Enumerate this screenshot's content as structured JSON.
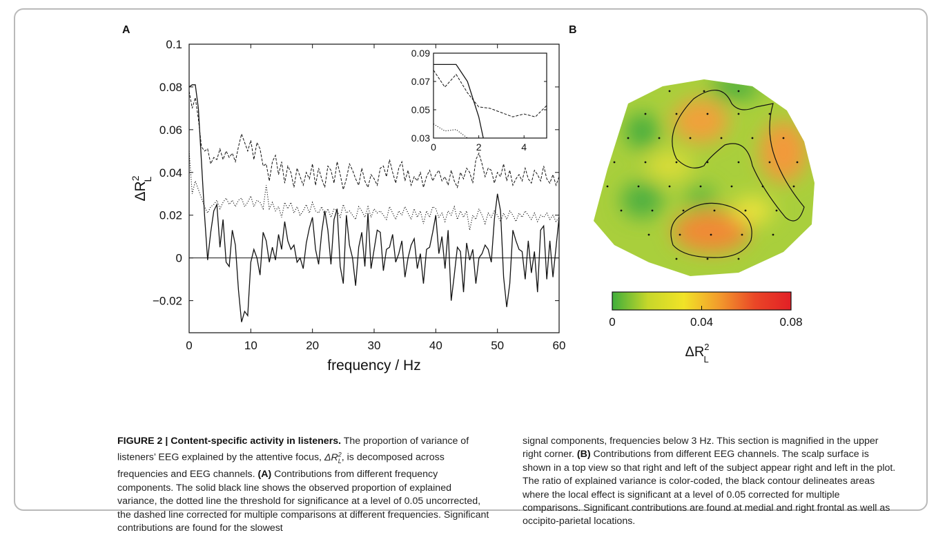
{
  "panels": {
    "a": "A",
    "b": "B"
  },
  "chart_data": [
    {
      "type": "line",
      "panel": "A",
      "xlabel": "frequency / Hz",
      "ylabel": "ΔR",
      "ylabel_sup": "2",
      "ylabel_sub": "L",
      "xlim": [
        0,
        60
      ],
      "ylim": [
        -0.035,
        0.1
      ],
      "xticks": [
        0,
        10,
        20,
        30,
        40,
        50,
        60
      ],
      "yticks": [
        -0.02,
        0,
        0.02,
        0.04,
        0.06,
        0.08,
        0.1
      ],
      "ytick_labels": [
        "−0.02",
        "0",
        "0.02",
        "0.04",
        "0.06",
        "0.08",
        "0.1"
      ],
      "x": [
        0,
        0.5,
        1,
        1.5,
        2,
        2.5,
        3,
        3.5,
        4,
        4.5,
        5,
        5.5,
        6,
        6.5,
        7,
        7.5,
        8,
        8.5,
        9,
        9.5,
        10,
        10.5,
        11,
        11.5,
        12,
        12.5,
        13,
        13.5,
        14,
        14.5,
        15,
        15.5,
        16,
        16.5,
        17,
        17.5,
        18,
        18.5,
        19,
        19.5,
        20,
        20.5,
        21,
        21.5,
        22,
        22.5,
        23,
        23.5,
        24,
        24.5,
        25,
        25.5,
        26,
        26.5,
        27,
        27.5,
        28,
        28.5,
        29,
        29.5,
        30,
        30.5,
        31,
        31.5,
        32,
        32.5,
        33,
        33.5,
        34,
        34.5,
        35,
        35.5,
        36,
        36.5,
        37,
        37.5,
        38,
        38.5,
        39,
        39.5,
        40,
        40.5,
        41,
        41.5,
        42,
        42.5,
        43,
        43.5,
        44,
        44.5,
        45,
        45.5,
        46,
        46.5,
        47,
        47.5,
        48,
        48.5,
        49,
        49.5,
        50,
        50.5,
        51,
        51.5,
        52,
        52.5,
        53,
        53.5,
        54,
        54.5,
        55,
        55.5,
        56,
        56.5,
        57,
        57.5,
        58,
        58.5,
        59,
        59.5,
        60
      ],
      "series": [
        {
          "style": "solid",
          "values": [
            0.08,
            0.081,
            0.081,
            0.07,
            0.045,
            0.02,
            -0.001,
            0.012,
            0.022,
            0.025,
            0.005,
            0.018,
            -0.002,
            -0.004,
            0.013,
            0.006,
            -0.015,
            -0.03,
            -0.025,
            -0.027,
            -0.002,
            0.004,
            0.0,
            -0.008,
            0.012,
            0.008,
            -0.002,
            0.005,
            -0.001,
            0.011,
            0.004,
            0.017,
            0.008,
            0.004,
            0.006,
            -0.002,
            0.0,
            -0.005,
            0.007,
            0.014,
            0.019,
            0.004,
            -0.003,
            0.012,
            0.022,
            0.013,
            -0.003,
            0.018,
            0.023,
            -0.004,
            -0.012,
            0.02,
            0.006,
            0.0,
            -0.013,
            0.005,
            0.012,
            -0.004,
            0.021,
            -0.005,
            0.004,
            0.013,
            0.012,
            -0.006,
            0.004,
            0.005,
            0.011,
            -0.002,
            0.002,
            0.008,
            -0.009,
            0.0,
            0.006,
            0.009,
            -0.005,
            0.002,
            -0.012,
            0.004,
            0.005,
            0.012,
            0.02,
            0.002,
            0.01,
            -0.005,
            0.013,
            -0.02,
            -0.008,
            0.005,
            0.003,
            -0.016,
            0.007,
            -0.001,
            0.004,
            -0.012,
            0.0,
            0.002,
            0.006,
            0.004,
            -0.002,
            0.018,
            0.03,
            0.022,
            -0.009,
            -0.023,
            -0.012,
            0.013,
            0.008,
            0.004,
            0.003,
            -0.01,
            0.008,
            -0.007,
            0.003,
            -0.016,
            0.013,
            0.015,
            -0.01,
            0.008,
            -0.009,
            0.005,
            0.019
          ]
        },
        {
          "style": "dashed",
          "values": [
            0.078,
            0.07,
            0.075,
            0.065,
            0.052,
            0.05,
            0.051,
            0.044,
            0.047,
            0.046,
            0.051,
            0.046,
            0.05,
            0.047,
            0.049,
            0.045,
            0.052,
            0.058,
            0.054,
            0.05,
            0.055,
            0.046,
            0.054,
            0.051,
            0.043,
            0.044,
            0.036,
            0.045,
            0.048,
            0.039,
            0.045,
            0.035,
            0.043,
            0.04,
            0.033,
            0.042,
            0.038,
            0.034,
            0.04,
            0.037,
            0.044,
            0.034,
            0.042,
            0.037,
            0.033,
            0.043,
            0.041,
            0.035,
            0.045,
            0.039,
            0.032,
            0.037,
            0.044,
            0.041,
            0.037,
            0.034,
            0.042,
            0.036,
            0.033,
            0.039,
            0.037,
            0.034,
            0.042,
            0.043,
            0.038,
            0.046,
            0.04,
            0.035,
            0.042,
            0.045,
            0.036,
            0.041,
            0.034,
            0.038,
            0.036,
            0.04,
            0.033,
            0.038,
            0.041,
            0.036,
            0.039,
            0.041,
            0.036,
            0.038,
            0.034,
            0.041,
            0.036,
            0.033,
            0.04,
            0.037,
            0.042,
            0.04,
            0.035,
            0.046,
            0.049,
            0.044,
            0.038,
            0.042,
            0.041,
            0.035,
            0.04,
            0.038,
            0.044,
            0.036,
            0.041,
            0.034,
            0.037,
            0.039,
            0.036,
            0.042,
            0.037,
            0.035,
            0.041,
            0.039,
            0.036,
            0.043,
            0.037,
            0.035,
            0.039,
            0.034,
            0.038
          ]
        },
        {
          "style": "dotted",
          "values": [
            0.05,
            0.03,
            0.036,
            0.032,
            0.028,
            0.024,
            0.021,
            0.024,
            0.025,
            0.027,
            0.023,
            0.026,
            0.028,
            0.025,
            0.027,
            0.024,
            0.027,
            0.028,
            0.024,
            0.026,
            0.029,
            0.024,
            0.027,
            0.026,
            0.023,
            0.034,
            0.023,
            0.026,
            0.022,
            0.024,
            0.019,
            0.026,
            0.023,
            0.026,
            0.021,
            0.024,
            0.02,
            0.022,
            0.025,
            0.021,
            0.026,
            0.022,
            0.021,
            0.024,
            0.02,
            0.023,
            0.019,
            0.023,
            0.022,
            0.019,
            0.025,
            0.021,
            0.022,
            0.02,
            0.018,
            0.024,
            0.022,
            0.019,
            0.024,
            0.019,
            0.023,
            0.021,
            0.022,
            0.02,
            0.018,
            0.024,
            0.021,
            0.018,
            0.022,
            0.02,
            0.024,
            0.021,
            0.018,
            0.023,
            0.019,
            0.022,
            0.016,
            0.022,
            0.019,
            0.024,
            0.023,
            0.019,
            0.021,
            0.017,
            0.022,
            0.02,
            0.024,
            0.018,
            0.022,
            0.019,
            0.022,
            0.013,
            0.02,
            0.018,
            0.023,
            0.02,
            0.016,
            0.021,
            0.019,
            0.022,
            0.02,
            0.017,
            0.021,
            0.018,
            0.022,
            0.02,
            0.017,
            0.021,
            0.019,
            0.022,
            0.02,
            0.018,
            0.021,
            0.017,
            0.02,
            0.019,
            0.021,
            0.018,
            0.02,
            0.017,
            0.019
          ]
        }
      ],
      "reference_line": 0
    },
    {
      "type": "line",
      "panel": "A inset",
      "xlim": [
        0,
        5
      ],
      "ylim": [
        0.03,
        0.09
      ],
      "xticks": [
        0,
        2,
        4
      ],
      "yticks": [
        0.03,
        0.05,
        0.07,
        0.09
      ],
      "ytick_labels": [
        "0.03",
        "0.05",
        "0.07",
        "0.09"
      ],
      "series": [
        {
          "style": "solid",
          "x": [
            0,
            1,
            1.5,
            2,
            2.2
          ],
          "values": [
            0.082,
            0.082,
            0.07,
            0.045,
            0.03
          ]
        },
        {
          "style": "dashed",
          "x": [
            0,
            0.5,
            1,
            1.5,
            2,
            2.5,
            3,
            3.5,
            4,
            4.5,
            5
          ],
          "values": [
            0.078,
            0.066,
            0.075,
            0.062,
            0.052,
            0.051,
            0.048,
            0.045,
            0.047,
            0.045,
            0.053
          ]
        },
        {
          "style": "dotted",
          "x": [
            0,
            0.5,
            1,
            1.5
          ],
          "values": [
            0.04,
            0.035,
            0.036,
            0.03
          ]
        }
      ]
    },
    {
      "type": "heatmap",
      "panel": "B",
      "colorbar": {
        "min": 0,
        "max": 0.08,
        "ticks": [
          0,
          0.04,
          0.08
        ],
        "tick_labels": [
          "0",
          "0.04",
          "0.08"
        ],
        "label": "ΔR",
        "label_sup": "2",
        "label_sub": "L",
        "colors": [
          "#3fae3b",
          "#c7d72a",
          "#f1e327",
          "#f29a2c",
          "#ea4627",
          "#e21f26"
        ]
      },
      "base_color": "#a9cf3c"
    }
  ],
  "caption": {
    "figure_label": "FIGURE 2 | Content-specific activity in listeners.",
    "col1_a": " The proportion of variance of listeners’ EEG explained by the attentive focus, ",
    "col1_b": ", is decomposed across frequencies and EEG channels. ",
    "col1_a_label": "(A)",
    "col1_c": " Contributions from different frequency components. The solid black line shows the observed proportion of explained variance, the dotted line the threshold for significance at a level of 0.05 uncorrected, the dashed line corrected for multiple comparisons at different frequencies. Significant contributions are found for the slowest",
    "col2_a": "signal components, frequencies below 3 Hz. This section is magnified in the upper right corner. ",
    "col2_b_label": "(B)",
    "col2_c": " Contributions from different EEG channels. The scalp surface is shown in a top view so that right and left of the subject appear right and left in the plot. The ratio of explained variance is color-coded, the black contour delineates areas where the local effect is significant at a level of 0.05 corrected for multiple comparisons. Significant contributions are found at medial and right frontal as well as occipito-parietal locations."
  }
}
